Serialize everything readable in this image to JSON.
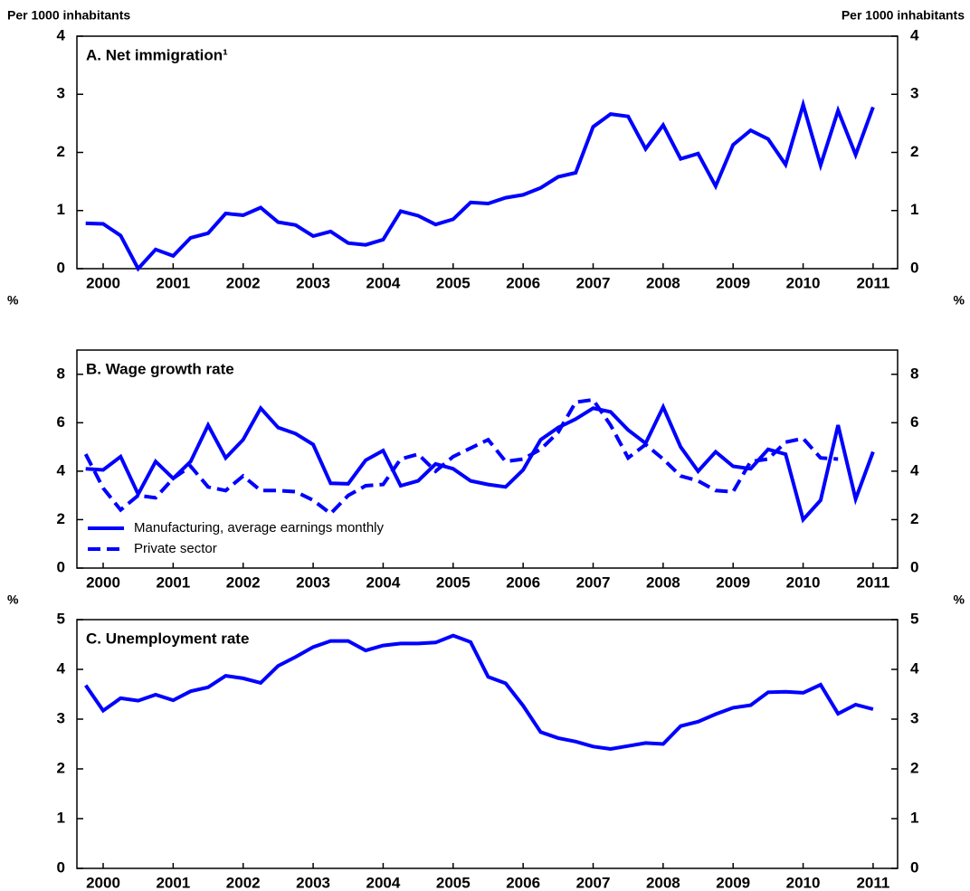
{
  "chart_data": [
    {
      "type": "line",
      "title": "A. Net immigration¹",
      "ylabel": "Per 1000 inhabitants",
      "y2label": "Per 1000 inhabitants",
      "x": [
        2000.25,
        2000.5,
        2000.75,
        2001,
        2001.25,
        2001.5,
        2001.75,
        2002,
        2002.25,
        2002.5,
        2002.75,
        2003,
        2003.25,
        2003.5,
        2003.75,
        2004,
        2004.25,
        2004.5,
        2004.75,
        2005,
        2005.25,
        2005.5,
        2005.75,
        2006,
        2006.25,
        2006.5,
        2006.75,
        2007,
        2007.25,
        2007.5,
        2007.75,
        2008,
        2008.25,
        2008.5,
        2008.75,
        2009,
        2009.25,
        2009.5,
        2009.75,
        2010,
        2010.25,
        2010.5,
        2010.75,
        2011,
        2011.25,
        2011.5
      ],
      "series": [
        {
          "name": "Net immigration",
          "color": "#0000ff",
          "style": "solid",
          "values": [
            0.78,
            0.77,
            0.57,
            0.0,
            0.33,
            0.22,
            0.53,
            0.61,
            0.95,
            0.92,
            1.05,
            0.8,
            0.75,
            0.56,
            0.64,
            0.44,
            0.41,
            0.5,
            0.99,
            0.91,
            0.76,
            0.85,
            1.14,
            1.12,
            1.22,
            1.27,
            1.39,
            1.58,
            1.65,
            2.44,
            2.66,
            2.62,
            2.06,
            2.47,
            1.89,
            1.98,
            1.42,
            2.13,
            2.38,
            2.23,
            1.79,
            2.82,
            1.78,
            2.72,
            1.96,
            2.78
          ]
        }
      ],
      "xlim": [
        2000.125,
        2011.85
      ],
      "xticks": [
        {
          "value": 2000.5,
          "label": "2000"
        },
        {
          "value": 2001.5,
          "label": "2001"
        },
        {
          "value": 2002.5,
          "label": "2002"
        },
        {
          "value": 2003.5,
          "label": "2003"
        },
        {
          "value": 2004.5,
          "label": "2004"
        },
        {
          "value": 2005.5,
          "label": "2005"
        },
        {
          "value": 2006.5,
          "label": "2006"
        },
        {
          "value": 2007.5,
          "label": "2007"
        },
        {
          "value": 2008.5,
          "label": "2008"
        },
        {
          "value": 2009.5,
          "label": "2009"
        },
        {
          "value": 2010.5,
          "label": "2010"
        },
        {
          "value": 2011.5,
          "label": "2011"
        }
      ],
      "ylim": [
        0,
        4
      ],
      "yticks": [
        0,
        1,
        2,
        3,
        4
      ],
      "y2lim": [
        0,
        4
      ],
      "y2ticks": [
        0,
        1,
        2,
        3,
        4
      ]
    },
    {
      "type": "line",
      "title": "B. Wage growth rate",
      "ylabel": "%",
      "y2label": "%",
      "legend": "lower left",
      "x": [
        2000.25,
        2000.5,
        2000.75,
        2001,
        2001.25,
        2001.5,
        2001.75,
        2002,
        2002.25,
        2002.5,
        2002.75,
        2003,
        2003.25,
        2003.5,
        2003.75,
        2004,
        2004.25,
        2004.5,
        2004.75,
        2005,
        2005.25,
        2005.5,
        2005.75,
        2006,
        2006.25,
        2006.5,
        2006.75,
        2007,
        2007.25,
        2007.5,
        2007.75,
        2008,
        2008.25,
        2008.5,
        2008.75,
        2009,
        2009.25,
        2009.5,
        2009.75,
        2010,
        2010.25,
        2010.5,
        2010.75,
        2011,
        2011.25,
        2011.5
      ],
      "series": [
        {
          "name": "Manufacturing, average earnings monthly",
          "color": "#0000ff",
          "style": "solid",
          "values": [
            4.1,
            4.05,
            4.6,
            3.05,
            4.4,
            3.7,
            4.4,
            5.9,
            4.55,
            5.3,
            6.6,
            5.8,
            5.55,
            5.1,
            3.5,
            3.48,
            4.45,
            4.85,
            3.4,
            3.6,
            4.3,
            4.1,
            3.6,
            3.45,
            3.35,
            4.05,
            5.3,
            5.8,
            6.15,
            6.6,
            6.45,
            5.7,
            5.15,
            6.65,
            5.0,
            4.0,
            4.8,
            4.2,
            4.1,
            4.9,
            4.7,
            2.0,
            2.8,
            5.9,
            2.85,
            4.8
          ]
        },
        {
          "name": "Private sector",
          "color": "#0000ff",
          "style": "dashed",
          "values": [
            4.7,
            3.3,
            2.4,
            3.0,
            2.9,
            3.7,
            4.2,
            3.35,
            3.2,
            3.8,
            3.2,
            3.2,
            3.15,
            2.8,
            2.25,
            3.0,
            3.4,
            3.45,
            4.5,
            4.7,
            4.0,
            4.6,
            4.95,
            5.3,
            4.4,
            4.5,
            4.9,
            5.6,
            6.85,
            6.95,
            5.9,
            4.55,
            5.1,
            4.5,
            3.8,
            3.6,
            3.2,
            3.15,
            4.4,
            4.5,
            5.2,
            5.35,
            4.55,
            4.5,
            null,
            null
          ]
        }
      ],
      "xlim": [
        2000.125,
        2011.85
      ],
      "xticks": [
        {
          "value": 2000.5,
          "label": "2000"
        },
        {
          "value": 2001.5,
          "label": "2001"
        },
        {
          "value": 2002.5,
          "label": "2002"
        },
        {
          "value": 2003.5,
          "label": "2003"
        },
        {
          "value": 2004.5,
          "label": "2004"
        },
        {
          "value": 2005.5,
          "label": "2005"
        },
        {
          "value": 2006.5,
          "label": "2006"
        },
        {
          "value": 2007.5,
          "label": "2007"
        },
        {
          "value": 2008.5,
          "label": "2008"
        },
        {
          "value": 2009.5,
          "label": "2009"
        },
        {
          "value": 2010.5,
          "label": "2010"
        },
        {
          "value": 2011.5,
          "label": "2011"
        }
      ],
      "ylim": [
        0,
        9
      ],
      "yticks": [
        0,
        2,
        4,
        6,
        8
      ],
      "y2lim": [
        0,
        9
      ],
      "y2ticks": [
        0,
        2,
        4,
        6,
        8
      ]
    },
    {
      "type": "line",
      "title": "C. Unemployment rate",
      "ylabel": "%",
      "y2label": "%",
      "x": [
        2000.25,
        2000.5,
        2000.75,
        2001,
        2001.25,
        2001.5,
        2001.75,
        2002,
        2002.25,
        2002.5,
        2002.75,
        2003,
        2003.25,
        2003.5,
        2003.75,
        2004,
        2004.25,
        2004.5,
        2004.75,
        2005,
        2005.25,
        2005.5,
        2005.75,
        2006,
        2006.25,
        2006.5,
        2006.75,
        2007,
        2007.25,
        2007.5,
        2007.75,
        2008,
        2008.25,
        2008.5,
        2008.75,
        2009,
        2009.25,
        2009.5,
        2009.75,
        2010,
        2010.25,
        2010.5,
        2010.75,
        2011,
        2011.25,
        2011.5
      ],
      "series": [
        {
          "name": "Unemployment rate",
          "color": "#0000ff",
          "style": "solid",
          "values": [
            3.68,
            3.17,
            3.42,
            3.37,
            3.49,
            3.38,
            3.56,
            3.64,
            3.87,
            3.82,
            3.73,
            4.07,
            4.25,
            4.45,
            4.57,
            4.57,
            4.38,
            4.48,
            4.52,
            4.52,
            4.54,
            4.68,
            4.55,
            3.85,
            3.72,
            3.27,
            2.74,
            2.62,
            2.55,
            2.45,
            2.4,
            2.46,
            2.52,
            2.5,
            2.86,
            2.95,
            3.1,
            3.23,
            3.28,
            3.54,
            3.55,
            3.53,
            3.69,
            3.11,
            3.29,
            3.2
          ]
        }
      ],
      "xlim": [
        2000.125,
        2011.85
      ],
      "xticks": [
        {
          "value": 2000.5,
          "label": "2000"
        },
        {
          "value": 2001.5,
          "label": "2001"
        },
        {
          "value": 2002.5,
          "label": "2002"
        },
        {
          "value": 2003.5,
          "label": "2003"
        },
        {
          "value": 2004.5,
          "label": "2004"
        },
        {
          "value": 2005.5,
          "label": "2005"
        },
        {
          "value": 2006.5,
          "label": "2006"
        },
        {
          "value": 2007.5,
          "label": "2007"
        },
        {
          "value": 2008.5,
          "label": "2008"
        },
        {
          "value": 2009.5,
          "label": "2009"
        },
        {
          "value": 2010.5,
          "label": "2010"
        },
        {
          "value": 2011.5,
          "label": "2011"
        }
      ],
      "ylim": [
        0,
        5
      ],
      "yticks": [
        0,
        1,
        2,
        3,
        4,
        5
      ],
      "y2lim": [
        0,
        5
      ],
      "y2ticks": [
        0,
        1,
        2,
        3,
        4,
        5
      ]
    }
  ]
}
